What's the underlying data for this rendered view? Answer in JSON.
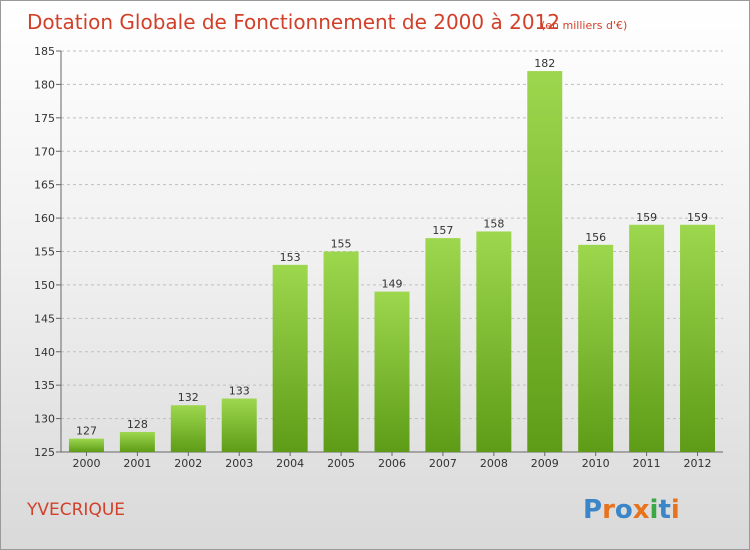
{
  "title": "Dotation Globale de Fonctionnement de 2000 à 2012",
  "unit": "(en milliers d'€)",
  "commune": "YVECRIQUE",
  "logo": {
    "text": "Proxiti",
    "letter_colors": [
      "#3a86c8",
      "#e8731e",
      "#3a86c8",
      "#e8731e",
      "#3aa845",
      "#3a86c8",
      "#e8731e"
    ]
  },
  "colors": {
    "bar_top": "#9dd74e",
    "bar_bottom": "#5e9c17",
    "title": "#d2402a",
    "grid": "#bfbfbf"
  },
  "chart_data": {
    "type": "bar",
    "title": "Dotation Globale de Fonctionnement de 2000 à 2012",
    "subtitle": "(en milliers d'€)",
    "xlabel": "",
    "ylabel": "",
    "categories": [
      "2000",
      "2001",
      "2002",
      "2003",
      "2004",
      "2005",
      "2006",
      "2007",
      "2008",
      "2009",
      "2010",
      "2011",
      "2012"
    ],
    "values": [
      127,
      128,
      132,
      133,
      153,
      155,
      149,
      157,
      158,
      182,
      156,
      159,
      159
    ],
    "ylim": [
      125,
      185
    ],
    "yticks": [
      125,
      130,
      135,
      140,
      145,
      150,
      155,
      160,
      165,
      170,
      175,
      180,
      185
    ],
    "grid": true,
    "data_labels": true
  }
}
